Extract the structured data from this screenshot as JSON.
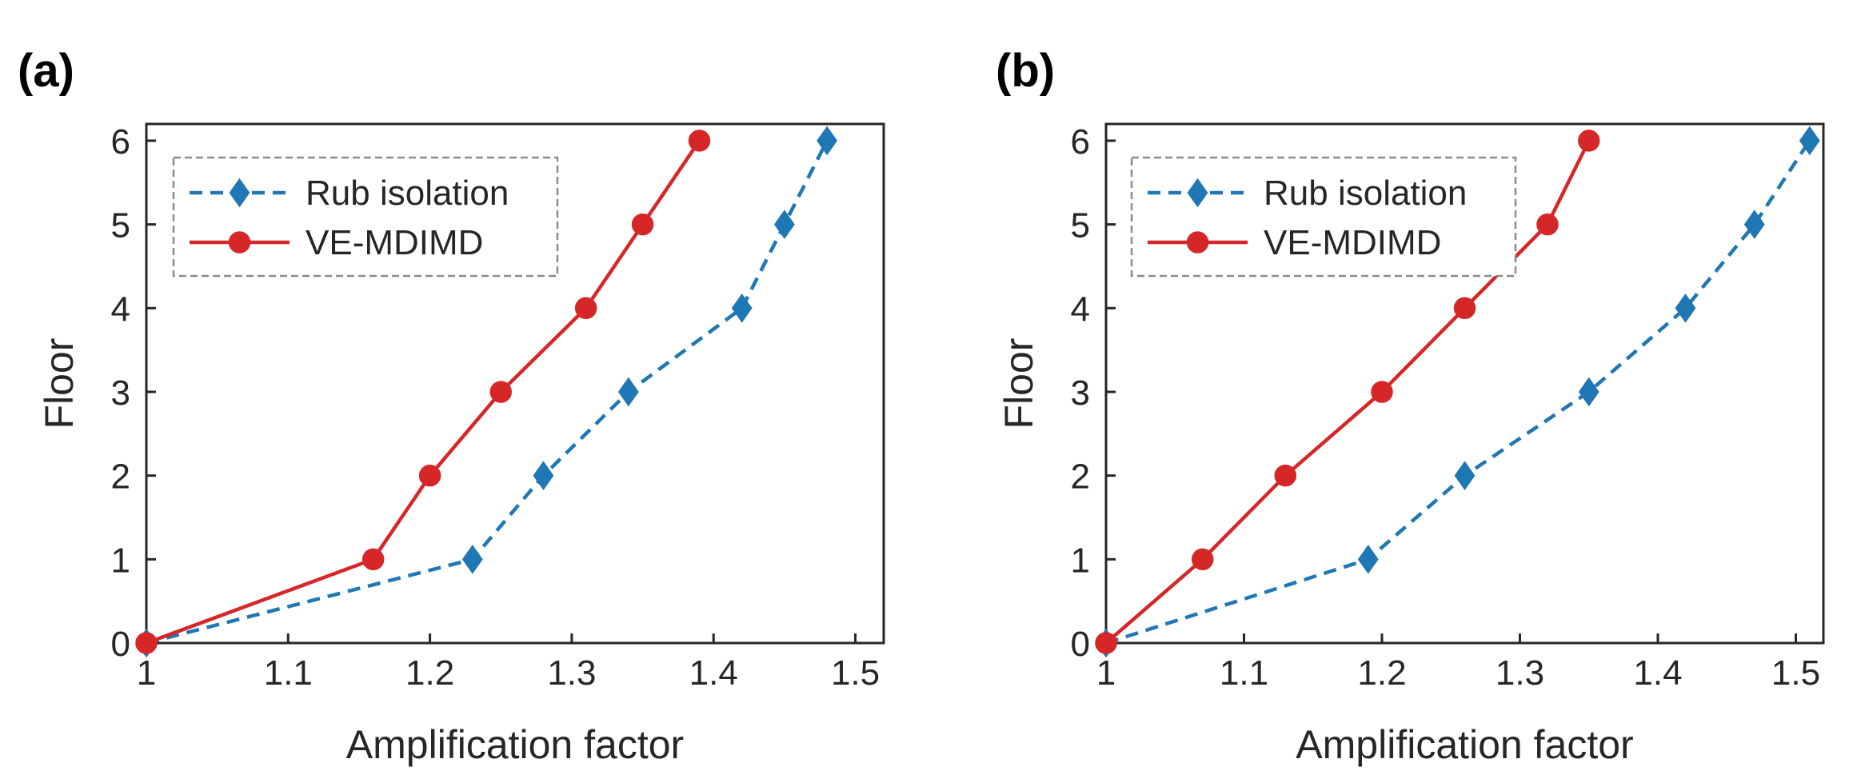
{
  "chart_data": [
    {
      "type": "line",
      "panel_label": "(a)",
      "xlabel": "Amplification factor",
      "ylabel": "Floor",
      "xlim": [
        1,
        1.52
      ],
      "ylim": [
        0,
        6.2
      ],
      "xticks": [
        "1",
        "1.1",
        "1.2",
        "1.3",
        "1.4",
        "1.5"
      ],
      "yticks": [
        "0",
        "1",
        "2",
        "3",
        "4",
        "5",
        "6"
      ],
      "grid": false,
      "legend_position": "top-left",
      "series": [
        {
          "name": "Rub isolation",
          "color": "#1f77b4",
          "line_style": "dashed",
          "marker": "diamond",
          "x": [
            1.0,
            1.23,
            1.28,
            1.34,
            1.42,
            1.45,
            1.48
          ],
          "y": [
            0,
            1,
            2,
            3,
            4,
            5,
            6
          ]
        },
        {
          "name": "VE-MDIMD",
          "color": "#d62728",
          "line_style": "solid",
          "marker": "circle",
          "x": [
            1.0,
            1.16,
            1.2,
            1.25,
            1.31,
            1.35,
            1.39
          ],
          "y": [
            0,
            1,
            2,
            3,
            4,
            5,
            6
          ]
        }
      ]
    },
    {
      "type": "line",
      "panel_label": "(b)",
      "xlabel": "Amplification factor",
      "ylabel": "Floor",
      "xlim": [
        1,
        1.52
      ],
      "ylim": [
        0,
        6.2
      ],
      "xticks": [
        "1",
        "1.1",
        "1.2",
        "1.3",
        "1.4",
        "1.5"
      ],
      "yticks": [
        "0",
        "1",
        "2",
        "3",
        "4",
        "5",
        "6"
      ],
      "grid": false,
      "legend_position": "top-left",
      "series": [
        {
          "name": "Rub isolation",
          "color": "#1f77b4",
          "line_style": "dashed",
          "marker": "diamond",
          "x": [
            1.0,
            1.19,
            1.26,
            1.35,
            1.42,
            1.47,
            1.51
          ],
          "y": [
            0,
            1,
            2,
            3,
            4,
            5,
            6
          ]
        },
        {
          "name": "VE-MDIMD",
          "color": "#d62728",
          "line_style": "solid",
          "marker": "circle",
          "x": [
            1.0,
            1.07,
            1.13,
            1.2,
            1.26,
            1.32,
            1.35
          ],
          "y": [
            0,
            1,
            2,
            3,
            4,
            5,
            6
          ]
        }
      ]
    }
  ]
}
